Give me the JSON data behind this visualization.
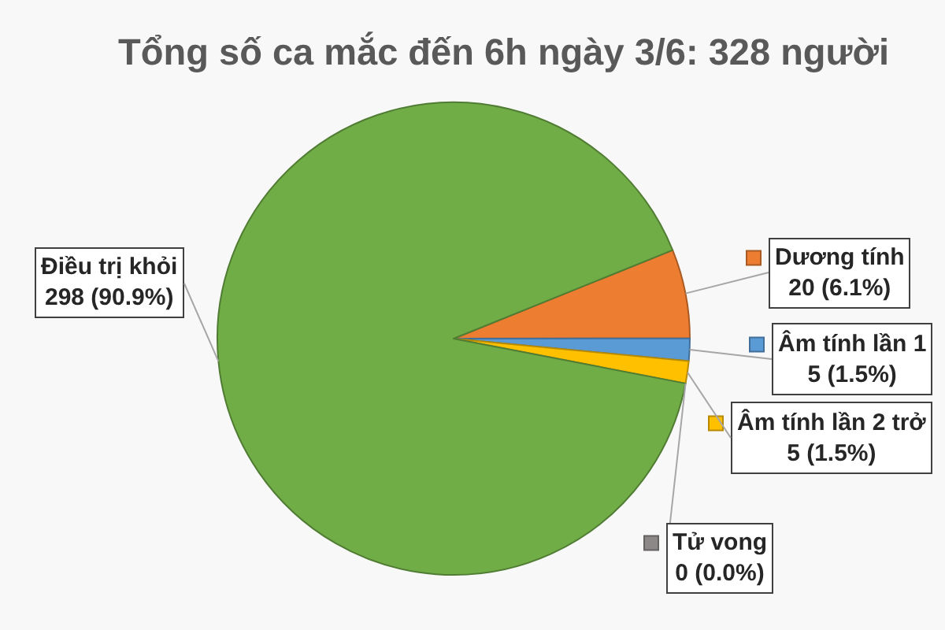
{
  "chart_data": {
    "type": "pie",
    "title": "Tổng số ca mắc đến 6h ngày 3/6: 328 người",
    "categories": [
      "Dương tính",
      "Âm tính lần 1",
      "Âm tính lần 2 trở",
      "Tử vong",
      "Điều trị khỏi"
    ],
    "values": [
      20,
      5,
      5,
      0,
      298
    ],
    "colors": [
      "#ed7d31",
      "#5b9bd5",
      "#ffc000",
      "#8c8888",
      "#70ad47"
    ],
    "value_labels": [
      "20 (6.1%)",
      "5 (1.5%)",
      "5 (1.5%)",
      "0 (0.0%)",
      "298 (90.9%)"
    ],
    "legend": "right"
  }
}
